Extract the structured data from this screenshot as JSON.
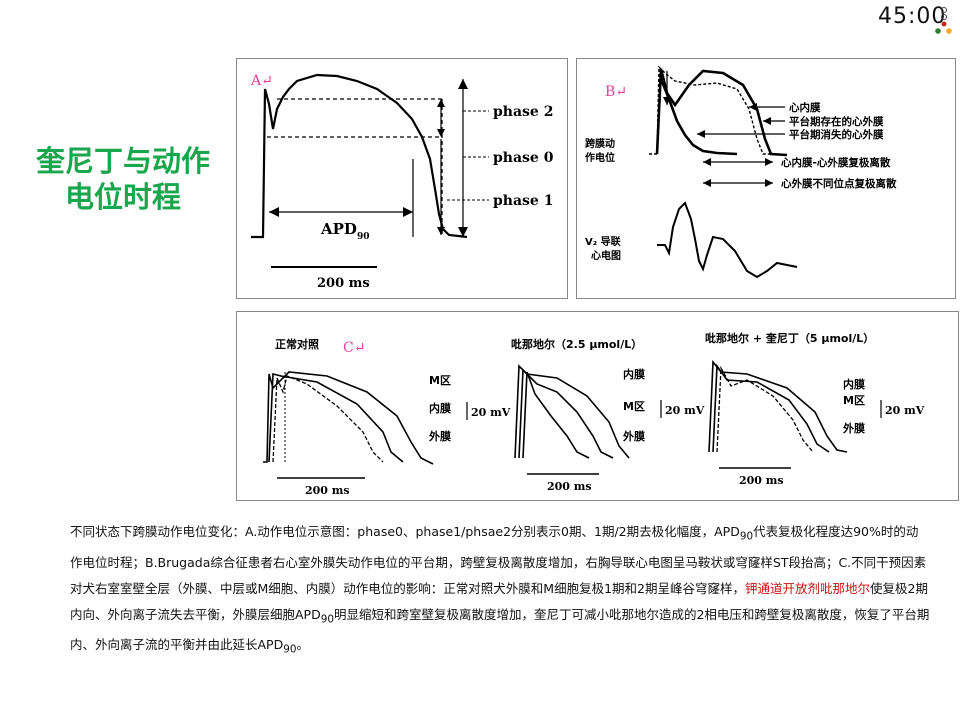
{
  "timer": {
    "minutes": "45",
    "sep": ":",
    "seconds": "00"
  },
  "title": {
    "line1": "奎尼丁与动作",
    "line2": "电位时程"
  },
  "panelA": {
    "label": "A↵",
    "phase_labels": [
      "phase 2",
      "phase 0",
      "phase 1"
    ],
    "apd_main": "APD",
    "apd_sub": "90",
    "scale": "200 ms"
  },
  "panelB": {
    "label": "B↵",
    "left_label_1": "跨膜动",
    "left_label_2": "作电位",
    "legend": [
      "心内膜",
      "平台期存在的心外膜",
      "平台期消失的心外膜"
    ],
    "dispersion_1": "心内膜-心外膜复极离散",
    "dispersion_2": "心外膜不同位点复极离散",
    "ecg_label_1": "V₂ 导联",
    "ecg_label_2": "心电图"
  },
  "panelC": {
    "label": "C↵",
    "groups": [
      {
        "title": "正常对照",
        "layers": [
          "M区",
          "内膜",
          "外膜"
        ],
        "unit": "20 mV",
        "scale": "200 ms"
      },
      {
        "title": "吡那地尔（2.5 μmol/L）",
        "layers": [
          "内膜",
          "M区",
          "外膜"
        ],
        "unit": "20 mV",
        "scale": "200 ms"
      },
      {
        "title": "吡那地尔 + 奎尼丁（5 μmol/L）",
        "layers": [
          "内膜",
          "M区",
          "外膜"
        ],
        "unit": "20 mV",
        "scale": "200 ms"
      }
    ]
  },
  "caption": {
    "part1": "不同状态下跨膜动作电位变化：A.动作电位示意图：phase0、phase1/phsae2分别表示0期、1期/2期去极化幅度，APD",
    "sub1": "90",
    "part2": "代表复极化程度达90%时的动作电位时程；B.Brugada综合征患者右心室外膜失动作电位的平台期，跨壁复极离散度增加，右胸导联心电图呈马鞍状或穹窿样ST段抬高；C.不同干预因素对犬右室室壁全层（外膜、中层或M细胞、内膜）动作电位的影响：正常对照犬外膜和M细胞复极1期和2期呈峰谷穹窿样，",
    "highlight": "钾通道开放剂吡那地尔",
    "part3": "使复极2期内向、外向离子流失去平衡，外膜层细胞APD",
    "sub2": "90",
    "part4": "明显缩短和跨室壁复极离散度增加，奎尼丁可减小吡那地尔造成的2相电压和跨壁复极离散度，恢复了平台期内、外向离子流的平衡并由此延长APD",
    "sub3": "90",
    "part5": "。"
  },
  "colors": {
    "title_green": "#19a64d",
    "highlight_red": "#c81414",
    "panel_label": "#e0409a"
  }
}
